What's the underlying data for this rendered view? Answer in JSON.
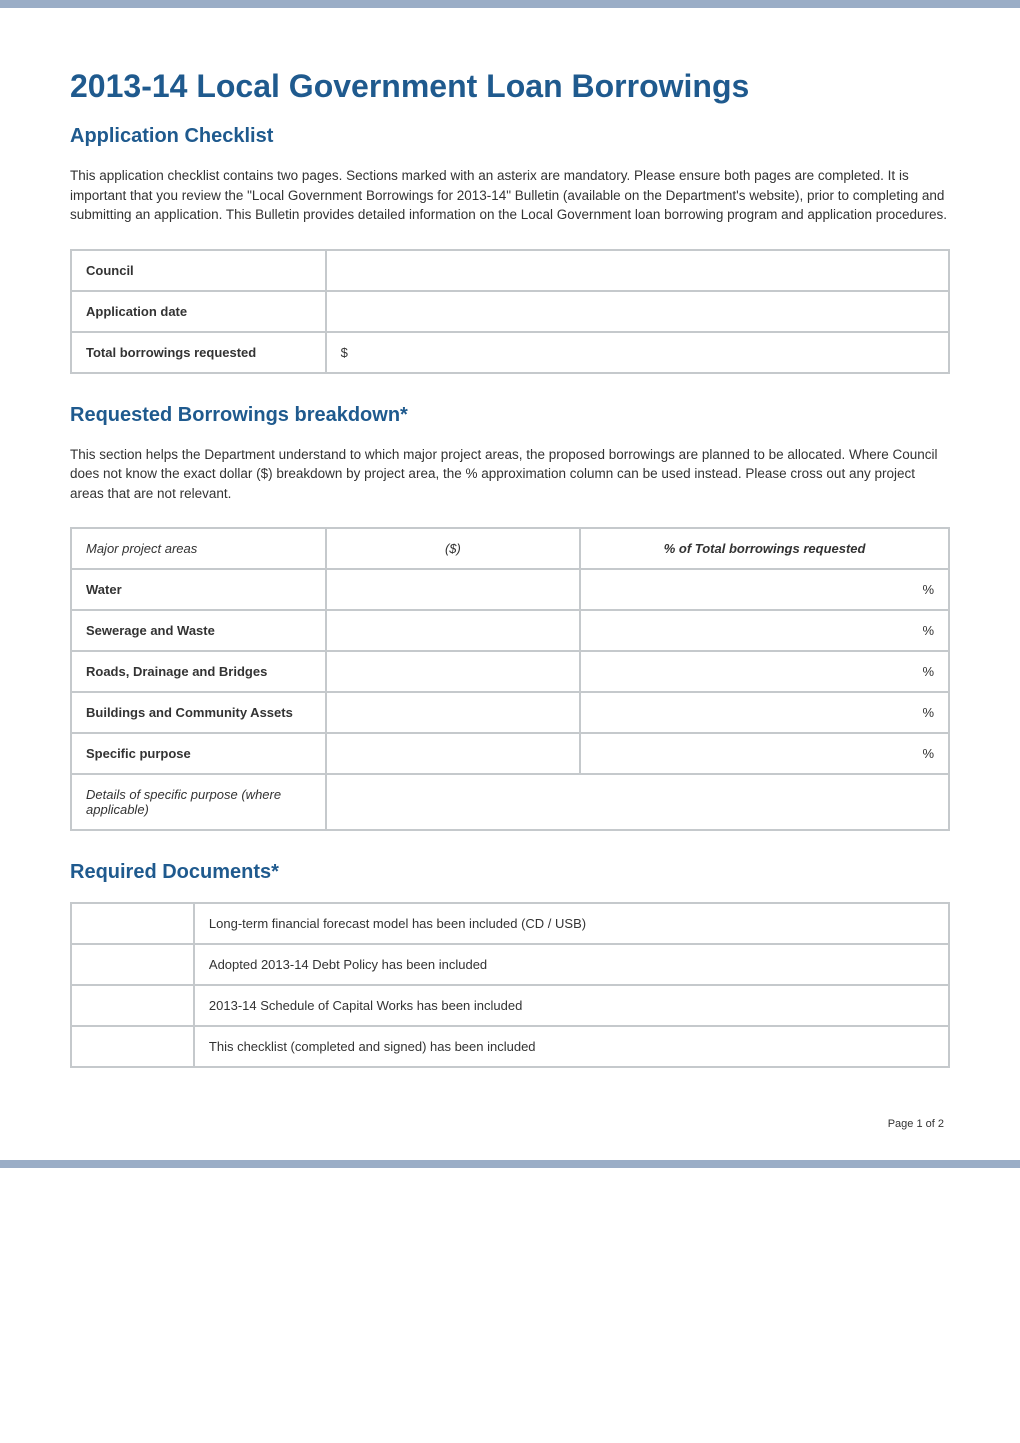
{
  "title": "2013-14 Local Government Loan Borrowings",
  "subtitle": "Application Checklist",
  "intro": "This application checklist contains two pages.  Sections marked with an asterix are mandatory.  Please ensure both pages are completed.  It is important that you review the \"Local Government Borrowings for 2013-14\" Bulletin (available on the Department's website), prior to completing and submitting an application.  This Bulletin provides detailed information on the Local Government loan borrowing program and application procedures.",
  "info_table": {
    "rows": [
      {
        "label": "Council",
        "value": ""
      },
      {
        "label": "Application date",
        "value": ""
      },
      {
        "label": "Total borrowings requested",
        "value": "$"
      }
    ]
  },
  "breakdown": {
    "heading": "Requested Borrowings breakdown*",
    "intro": "This section helps the Department understand to which major project areas, the proposed borrowings are planned to be allocated.  Where Council does not know the exact dollar ($) breakdown by project area, the % approximation column can be used instead.  Please cross out any project areas that are not relevant.",
    "headers": {
      "areas": "Major project areas",
      "dollars": "($)",
      "pct": "% of Total borrowings requested"
    },
    "rows": [
      {
        "label": "Water",
        "dollars": "",
        "pct": "%"
      },
      {
        "label": "Sewerage and Waste",
        "dollars": "",
        "pct": "%"
      },
      {
        "label": "Roads, Drainage and Bridges",
        "dollars": "",
        "pct": "%"
      },
      {
        "label": "Buildings and Community Assets",
        "dollars": "",
        "pct": "%"
      },
      {
        "label": "Specific purpose",
        "dollars": "",
        "pct": "%"
      }
    ],
    "details_label": "Details of specific purpose (where applicable)",
    "details_value": ""
  },
  "documents": {
    "heading": "Required Documents*",
    "rows": [
      {
        "check": "",
        "text": "Long-term financial forecast model has been included (CD / USB)"
      },
      {
        "check": "",
        "text": "Adopted 2013-14 Debt Policy has been included"
      },
      {
        "check": "",
        "text": "2013-14 Schedule of Capital Works has been included"
      },
      {
        "check": "",
        "text": "This checklist (completed and signed) has been included"
      }
    ]
  },
  "footer": "Page 1 of 2",
  "colors": {
    "accent": "#1f5a8e",
    "bar": "#9aadc6",
    "border": "#c5c9cc",
    "text": "#333333",
    "background": "#ffffff"
  }
}
